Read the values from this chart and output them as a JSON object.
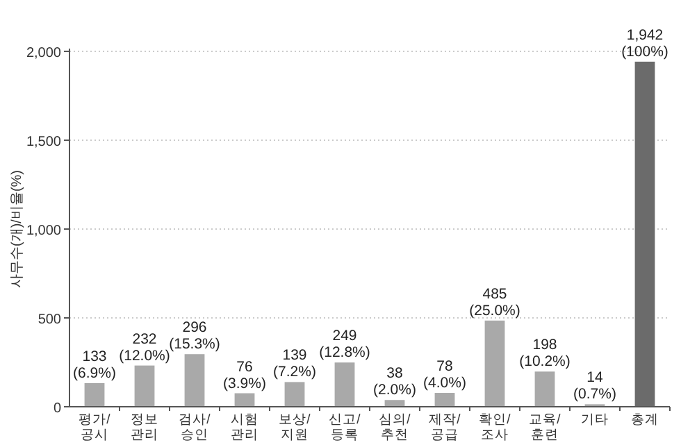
{
  "chart_data": {
    "type": "bar",
    "ylabel": "사무수(개)/비율(%)",
    "categories": [
      "평가/\n공시",
      "정보\n관리",
      "검사/\n승인",
      "시험\n관리",
      "보상/\n지원",
      "신고/\n등록",
      "심의/\n추천",
      "제작/\n공급",
      "확인/\n조사",
      "교육/\n훈련",
      "기타",
      "총계"
    ],
    "values": [
      133,
      232,
      296,
      76,
      139,
      249,
      38,
      78,
      485,
      198,
      14,
      1942
    ],
    "colors": [
      "#a9a9a9",
      "#a9a9a9",
      "#a9a9a9",
      "#a9a9a9",
      "#a9a9a9",
      "#a9a9a9",
      "#a9a9a9",
      "#a9a9a9",
      "#a9a9a9",
      "#a9a9a9",
      "#a9a9a9",
      "#6b6b6b"
    ],
    "value_labels": [
      "133\n(6.9%)",
      "232\n(12.0%)",
      "296\n(15.3%)",
      "76\n(3.9%)",
      "139\n(7.2%)",
      "249\n(12.8%)",
      "38\n(2.0%)",
      "78\n(4.0%)",
      "485\n(25.0%)",
      "198\n(10.2%)",
      "14\n(0.7%)",
      "1,942\n(100%)"
    ],
    "ylim": [
      0,
      2000
    ],
    "yticks": [
      0,
      {
        "value": 500,
        "label": "500"
      },
      {
        "value": 1000,
        "label": "1,000"
      },
      {
        "value": 1500,
        "label": "1,500"
      },
      {
        "value": 2000,
        "label": "2,000"
      }
    ],
    "grid": "y"
  }
}
